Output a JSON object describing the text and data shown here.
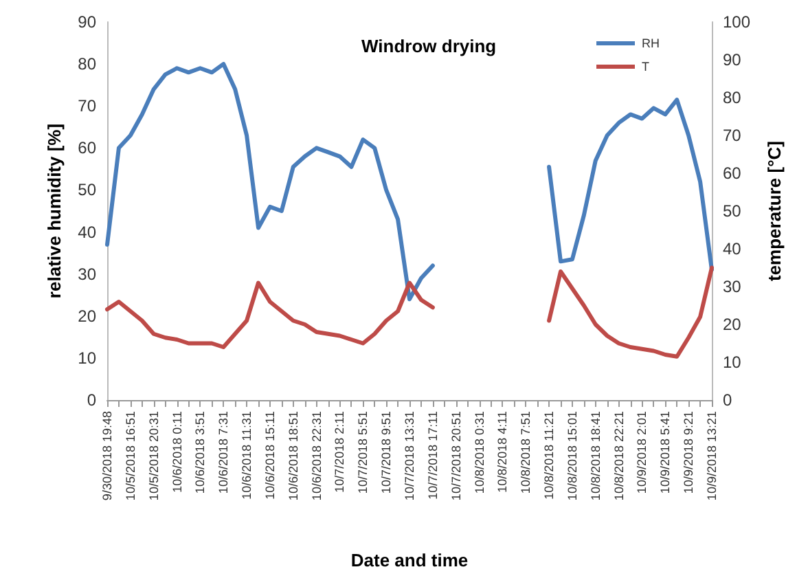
{
  "chart_data": {
    "type": "line",
    "title": "Windrow drying",
    "xlabel": "Date and time",
    "ylabel": "relative humidity [%]",
    "y2label": "temperature [°C]",
    "categories": [
      "9/30/2018 19:48",
      null,
      "10/5/2018 16:51",
      null,
      "10/5/2018 20:31",
      null,
      "10/6/2018 0:11",
      null,
      "10/6/2018 3:51",
      null,
      "10/6/2018 7:31",
      null,
      "10/6/2018 11:31",
      null,
      "10/6/2018 15:11",
      null,
      "10/6/2018 18:51",
      null,
      "10/6/2018 22:31",
      null,
      "10/7/2018 2:11",
      null,
      "10/7/2018 5:51",
      null,
      "10/7/2018 9:51",
      null,
      "10/7/2018 13:31",
      null,
      "10/7/2018 17:11",
      null,
      "10/7/2018 20:51",
      null,
      "10/8/2018 0:31",
      null,
      "10/8/2018 4:11",
      null,
      "10/8/2018 7:51",
      null,
      "10/8/2018 11:21",
      null,
      "10/8/2018 15:01",
      null,
      "10/8/2018 18:41",
      null,
      "10/8/2018 22:21",
      null,
      "10/9/2018 2:01",
      null,
      "10/9/2018 5:41",
      null,
      "10/9/2018 9:21",
      null,
      "10/9/2018 13:21"
    ],
    "series": [
      {
        "name": "RH",
        "color": "#4a7ebb",
        "values": [
          37,
          60,
          63,
          68,
          74,
          77.5,
          79,
          78,
          79,
          78,
          80,
          74,
          63,
          41,
          46,
          45,
          55.5,
          58,
          60,
          59,
          58,
          55.5,
          62,
          60,
          50,
          43,
          24,
          29,
          32,
          null,
          null,
          null,
          null,
          null,
          null,
          null,
          null,
          null,
          55.5,
          33,
          33.5,
          44,
          57,
          63,
          66,
          68,
          67,
          69.5,
          68,
          71.5,
          63,
          52,
          31
        ]
      },
      {
        "name": "T",
        "color": "#be4b48",
        "axis": "y2",
        "values": [
          24,
          26,
          23.5,
          21,
          17.5,
          16.5,
          16,
          15,
          15,
          15,
          14,
          17.5,
          21,
          31,
          26,
          23.5,
          21,
          20,
          18,
          17.5,
          17,
          16,
          15,
          17.5,
          21,
          23.5,
          31,
          26.5,
          24.5,
          null,
          null,
          null,
          null,
          null,
          null,
          null,
          null,
          null,
          21,
          34,
          29.5,
          25,
          20,
          17,
          15,
          14,
          13.5,
          13,
          12,
          11.5,
          16.5,
          22,
          35
        ]
      }
    ],
    "ylim": [
      0,
      90
    ],
    "yticks": [
      0,
      10,
      20,
      30,
      40,
      50,
      60,
      70,
      80,
      90
    ],
    "y2lim": [
      0,
      100
    ],
    "y2ticks": [
      0,
      10,
      20,
      30,
      40,
      50,
      60,
      70,
      80,
      90,
      100
    ],
    "legend": "top right",
    "marker": "none",
    "line_style": "solid"
  }
}
